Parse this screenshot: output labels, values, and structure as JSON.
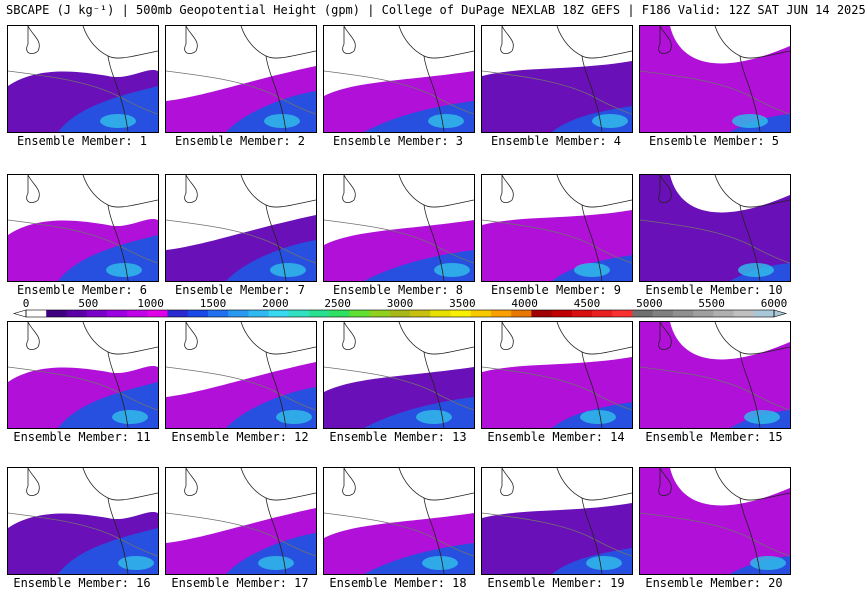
{
  "title": "SBCAPE (J kg⁻¹) | 500mb Geopotential Height (gpm) | College of DuPage NEXLAB 18Z GEFS | F186 Valid: 12Z SAT JUN 14 2025",
  "colorbar": {
    "ticks": [
      "0",
      "500",
      "1000",
      "1500",
      "2000",
      "2500",
      "3000",
      "3500",
      "4000",
      "4500",
      "5000",
      "5500",
      "6000"
    ],
    "colors": [
      "#ffffff",
      "#3e007e",
      "#5a00a6",
      "#7a00c8",
      "#9c00e0",
      "#c000e8",
      "#e000e8",
      "#2a2ad0",
      "#1848e8",
      "#2070f0",
      "#2898f0",
      "#30b8f0",
      "#38d8f0",
      "#30e0c0",
      "#28e090",
      "#30e060",
      "#60e030",
      "#90d020",
      "#a8b818",
      "#c8c010",
      "#e8e000",
      "#f8f000",
      "#f8c800",
      "#f8a000",
      "#e87800",
      "#a00000",
      "#c00000",
      "#d81010",
      "#e82020",
      "#f83030",
      "#707070",
      "#808080",
      "#909090",
      "#a0a0a0",
      "#b0b0b0",
      "#c0c0c0",
      "#a8c8d8"
    ]
  },
  "members": [
    {
      "label": "Ensemble Member: 1"
    },
    {
      "label": "Ensemble Member: 2"
    },
    {
      "label": "Ensemble Member: 3"
    },
    {
      "label": "Ensemble Member: 4"
    },
    {
      "label": "Ensemble Member: 5"
    },
    {
      "label": "Ensemble Member: 6"
    },
    {
      "label": "Ensemble Member: 7"
    },
    {
      "label": "Ensemble Member: 8"
    },
    {
      "label": "Ensemble Member: 9"
    },
    {
      "label": "Ensemble Member: 10"
    },
    {
      "label": "Ensemble Member: 11"
    },
    {
      "label": "Ensemble Member: 12"
    },
    {
      "label": "Ensemble Member: 13"
    },
    {
      "label": "Ensemble Member: 14"
    },
    {
      "label": "Ensemble Member: 15"
    },
    {
      "label": "Ensemble Member: 16"
    },
    {
      "label": "Ensemble Member: 17"
    },
    {
      "label": "Ensemble Member: 18"
    },
    {
      "label": "Ensemble Member: 19"
    },
    {
      "label": "Ensemble Member: 20"
    }
  ],
  "field_colors": {
    "low": "#6a10b8",
    "mid": "#b010d8",
    "high": "#2850e0",
    "peak": "#30b8e8"
  }
}
